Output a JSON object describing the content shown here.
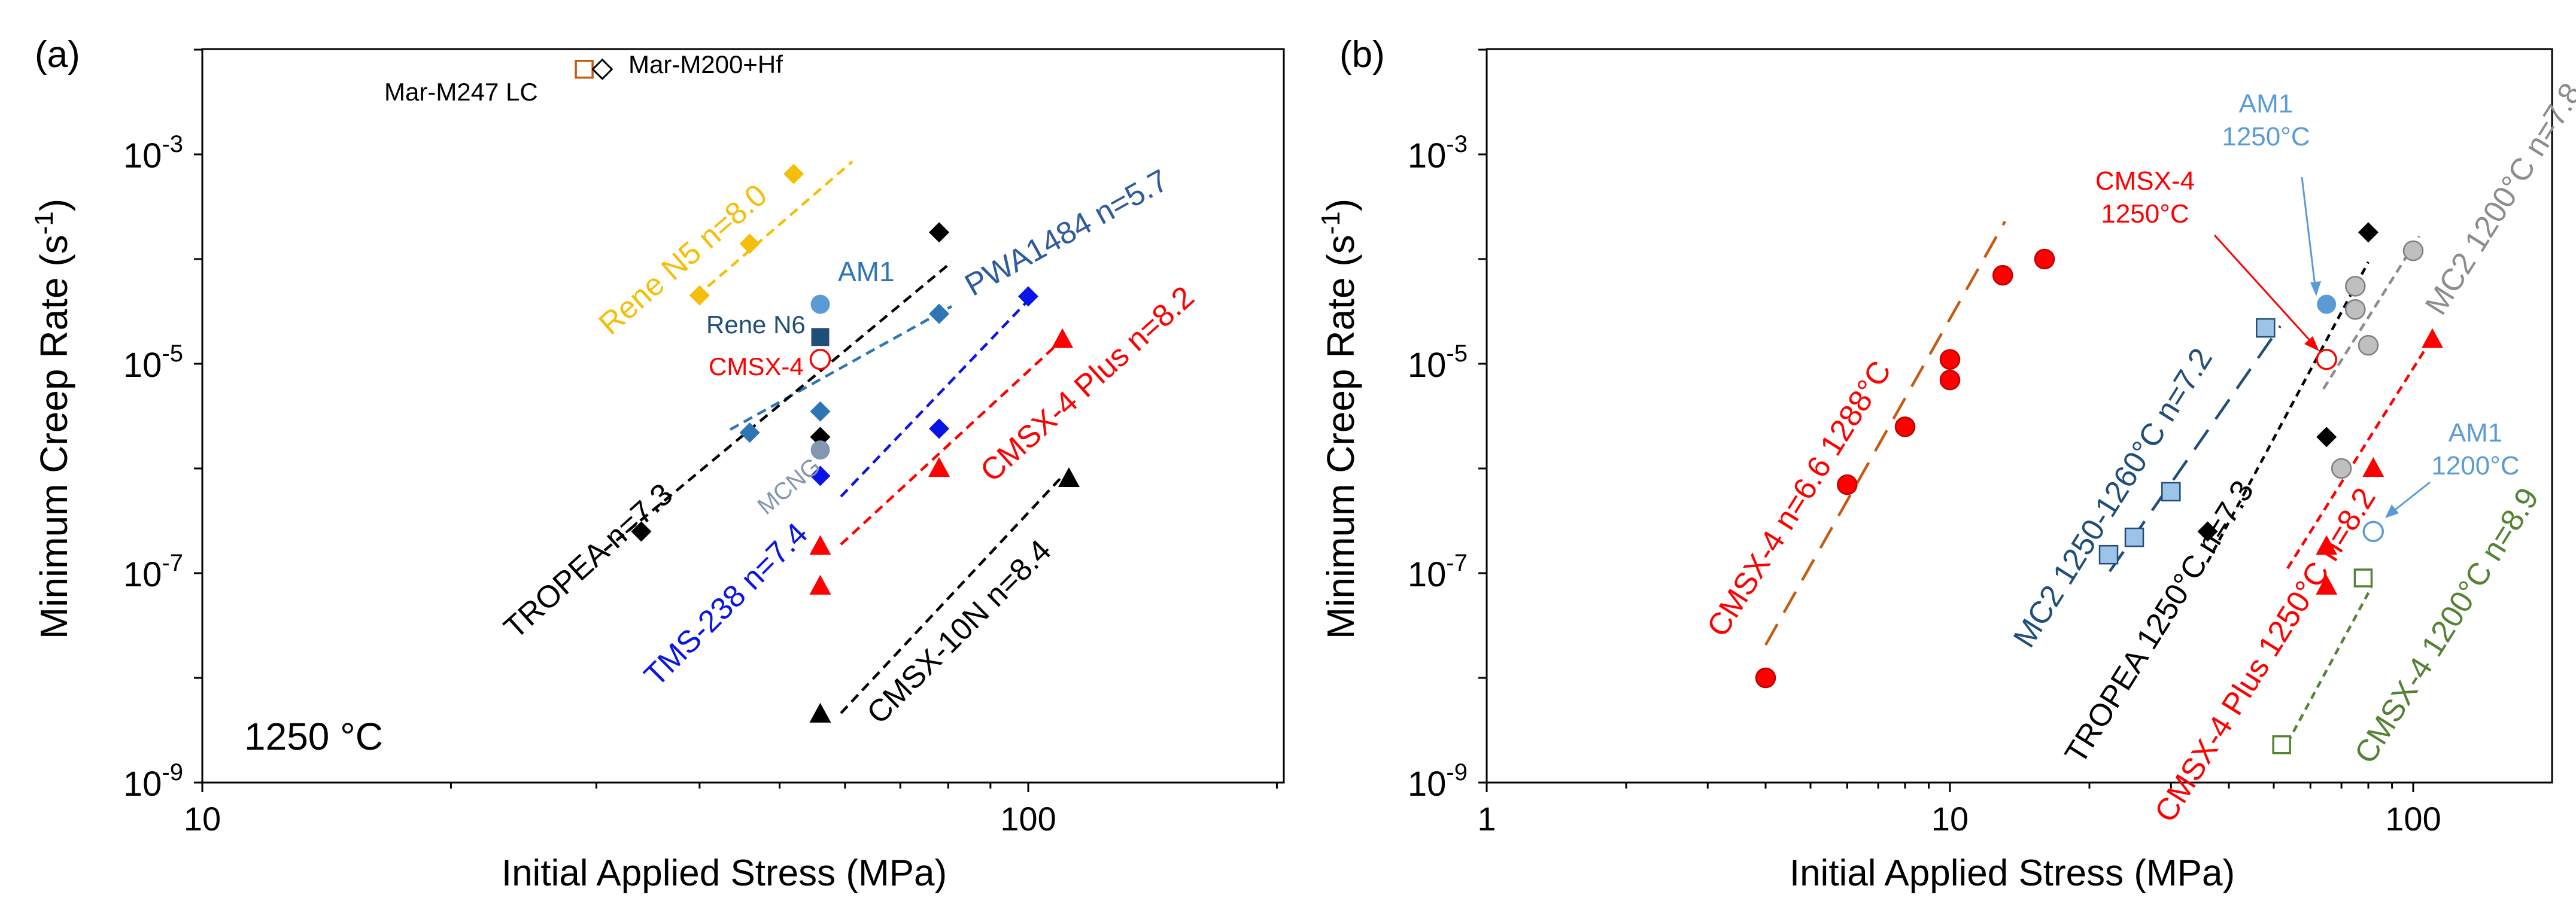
{
  "chart_data": [
    {
      "panel_label": "(a)",
      "type": "scatter",
      "xscale": "log",
      "yscale": "log",
      "xlim": [
        10,
        200
      ],
      "ylim": [
        1e-09,
        0.01
      ],
      "xlabel": "Initial Applied Stress (MPa)",
      "ylabel": "Minimum Creep Rate (s-1)",
      "ylabel_main": "Minimum Creep Rate (s",
      "ylabel_sup": "-1",
      "ylabel_tail": ")",
      "x_ticks": [
        "10",
        "100"
      ],
      "y_ticks": [
        "10-9",
        "10-7",
        "10-5",
        "10-3"
      ],
      "y_tick_mantissa": "10",
      "y_tick_exponents": [
        "-9",
        "-7",
        "-5",
        "-3"
      ],
      "annotation": "1250 °C",
      "series": [
        {
          "label": "Rene N5 n=8.0",
          "color": "#F5BE0B",
          "marker": "diamond",
          "points": [
            [
              40,
              4.5e-05
            ],
            [
              46,
              0.00014
            ],
            [
              52,
              0.00065
            ]
          ]
        },
        {
          "label": "PWA1484 n=5.7",
          "color": "#2E75B6",
          "marker": "diamond",
          "points": [
            [
              46,
              2.2e-06
            ],
            [
              56,
              3.5e-06
            ],
            [
              78,
              3e-05
            ]
          ]
        },
        {
          "label": "TMS-238 n=7.4",
          "color": "#0A14E6",
          "marker": "diamond",
          "points": [
            [
              56,
              8.5e-07
            ],
            [
              78,
              2.4e-06
            ],
            [
              100,
              4.4e-05
            ]
          ]
        },
        {
          "label": "CMSX-4 Plus n=8.2",
          "color": "#FF0000",
          "marker": "triangle",
          "points": [
            [
              56,
              7.5e-08
            ],
            [
              56,
              1.8e-07
            ],
            [
              78,
              1e-06
            ],
            [
              110,
              1.7e-05
            ]
          ]
        },
        {
          "label": "CMSX-10N n=8.4",
          "color": "#000000",
          "marker": "triangle",
          "points": [
            [
              56,
              4.5e-09
            ],
            [
              112,
              8e-07
            ]
          ]
        },
        {
          "label": "TROPEA n=7.3",
          "color": "#000000",
          "marker": "diamond",
          "points": [
            [
              34,
              2.5e-07
            ],
            [
              56,
              2e-06
            ],
            [
              78,
              0.00018
            ]
          ]
        },
        {
          "label": "AM1",
          "color": "#5B9BD5",
          "marker": "circle",
          "points": [
            [
              56,
              3.7e-05
            ]
          ]
        },
        {
          "label": "Rene N6",
          "color": "#1F4E79",
          "marker": "square",
          "points": [
            [
              56,
              1.8e-05
            ]
          ]
        },
        {
          "label": "CMSX-4",
          "color": "#FF0000",
          "marker": "open-circle",
          "points": [
            [
              56,
              1.1e-05
            ]
          ]
        },
        {
          "label": "MCNG",
          "color": "#8497B0",
          "marker": "circle",
          "points": [
            [
              56,
              1.5e-06
            ]
          ]
        },
        {
          "label": "Mar-M247 LC",
          "color": "#C55A11",
          "marker": "open-square",
          "points": [
            [
              29,
              0.0065
            ]
          ]
        },
        {
          "label": "Mar-M200+Hf",
          "color": "#000000",
          "marker": "open-diamond",
          "points": [
            [
              30.5,
              0.0065
            ]
          ]
        }
      ]
    },
    {
      "panel_label": "(b)",
      "type": "scatter",
      "xscale": "log",
      "yscale": "log",
      "xlim": [
        1,
        200
      ],
      "ylim": [
        1e-09,
        0.01
      ],
      "xlabel": "Initial Applied Stress (MPa)",
      "ylabel": "Minimum Creep Rate (s-1)",
      "ylabel_main": "Minimum Creep Rate (s",
      "ylabel_sup": "-1",
      "ylabel_tail": ")",
      "x_ticks": [
        "1",
        "10",
        "100"
      ],
      "y_ticks": [
        "10-9",
        "10-7",
        "10-5",
        "10-3"
      ],
      "y_tick_mantissa": "10",
      "y_tick_exponents": [
        "-9",
        "-7",
        "-5",
        "-3"
      ],
      "series": [
        {
          "label": "CMSX-4 n=6.6 1288°C",
          "color": "#FF0000",
          "marker": "circle",
          "points": [
            [
              4,
              1e-08
            ],
            [
              6,
              7e-07
            ],
            [
              8,
              2.5e-06
            ],
            [
              10,
              7e-06
            ],
            [
              10,
              1.1e-05
            ],
            [
              13,
              7e-05
            ],
            [
              16,
              0.0001
            ]
          ]
        },
        {
          "label": "MC2 1250-1260°C n=7.2",
          "color": "#9DC3E6",
          "marker": "square",
          "points": [
            [
              22,
              1.5e-07
            ],
            [
              25,
              2.2e-07
            ],
            [
              30,
              6e-07
            ],
            [
              48,
              2.2e-05
            ]
          ]
        },
        {
          "label": "TROPEA 1250°C n=7.3",
          "color": "#000000",
          "marker": "diamond",
          "points": [
            [
              36,
              2.5e-07
            ],
            [
              65,
              2e-06
            ],
            [
              80,
              0.00018
            ]
          ]
        },
        {
          "label": "CMSX-4 Plus 1250°C n=8.2",
          "color": "#FF0000",
          "marker": "triangle",
          "points": [
            [
              65,
              7.5e-08
            ],
            [
              65,
              1.8e-07
            ],
            [
              82,
              1e-06
            ],
            [
              110,
              1.7e-05
            ]
          ]
        },
        {
          "label": "CMSX-4 1200°C n=8.9",
          "color": "#548235",
          "marker": "open-square",
          "points": [
            [
              52,
              2.3e-09
            ],
            [
              78,
              9e-08
            ]
          ]
        },
        {
          "label": "MC2 1200°C n=7.8",
          "color": "#BFBFBF",
          "marker": "circle",
          "points": [
            [
              70,
              1e-06
            ],
            [
              75,
              3.3e-05
            ],
            [
              75,
              5.5e-05
            ],
            [
              80,
              1.5e-05
            ],
            [
              100,
              0.00012
            ]
          ]
        },
        {
          "label": "AM1 1250°C",
          "color": "#5B9BD5",
          "marker": "circle",
          "points": [
            [
              65,
              3.7e-05
            ]
          ]
        },
        {
          "label": "AM1 1200°C",
          "color": "#5B9BD5",
          "marker": "open-circle",
          "points": [
            [
              82,
              2.5e-07
            ]
          ]
        },
        {
          "label": "CMSX-4 1250°C",
          "color": "#FF0000",
          "marker": "open-circle",
          "points": [
            [
              65,
              1.1e-05
            ]
          ]
        }
      ],
      "annotations": [
        "CMSX-4",
        "1250°C",
        "AM1",
        "1250°C",
        "AM1",
        "1200°C"
      ]
    }
  ]
}
